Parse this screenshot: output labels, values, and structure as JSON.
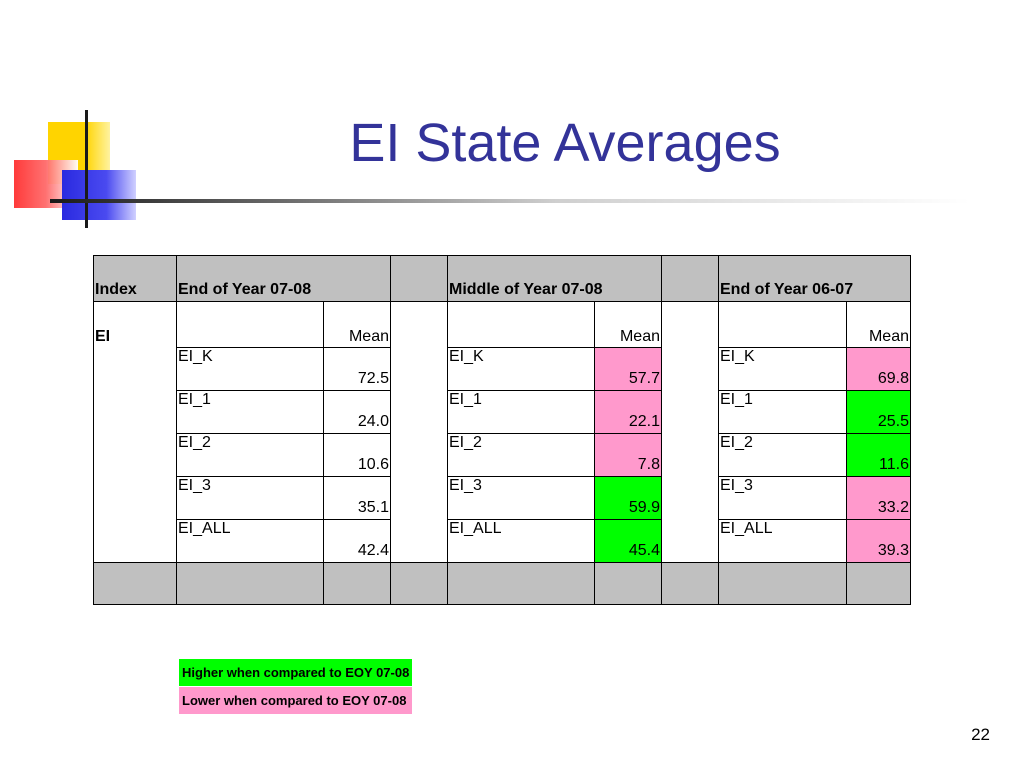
{
  "slide": {
    "title": "EI State Averages",
    "page_number": "22"
  },
  "colors": {
    "title": "#333399",
    "header_bg": "#c0c0c0",
    "higher": "#00ff00",
    "lower": "#ff99cc"
  },
  "table": {
    "headers": {
      "index": "Index",
      "eoy_0708": "End of Year 07-08",
      "moy_0708": "Middle of Year 07-08",
      "eoy_0607": "End of Year 06-07"
    },
    "index_value": "EI",
    "mean_label": "Mean",
    "rows": [
      {
        "label": "EI_K",
        "eoy_0708": "72.5",
        "moy_0708": "57.7",
        "eoy_0607": "69.8"
      },
      {
        "label": "EI_1",
        "eoy_0708": "24.0",
        "moy_0708": "22.1",
        "eoy_0607": "25.5"
      },
      {
        "label": "EI_2",
        "eoy_0708": "10.6",
        "moy_0708": "7.8",
        "eoy_0607": "11.6"
      },
      {
        "label": "EI_3",
        "eoy_0708": "35.1",
        "moy_0708": "59.9",
        "eoy_0607": "33.2"
      },
      {
        "label": "EI_ALL",
        "eoy_0708": "42.4",
        "moy_0708": "45.4",
        "eoy_0607": "39.3"
      }
    ]
  },
  "legend": {
    "higher": "Higher when compared to EOY 07-08",
    "lower": "Lower when compared to EOY 07-08"
  }
}
